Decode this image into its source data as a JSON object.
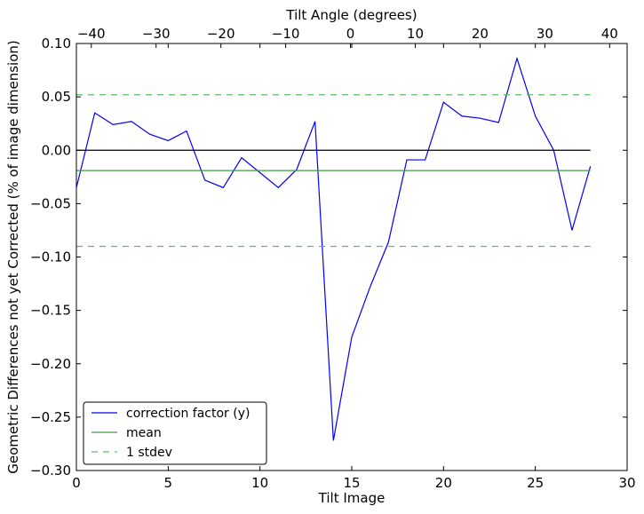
{
  "chart_data": {
    "type": "line",
    "title": "",
    "xlabel": "Tilt Image",
    "ylabel": "Geometric Differences not yet Corrected (% of image dimension)",
    "x2label": "Tilt Angle (degrees)",
    "xlim": [
      0,
      30
    ],
    "ylim": [
      -0.3,
      0.1
    ],
    "x2lim": [
      -42.3,
      42.7
    ],
    "xticks": [
      0,
      5,
      10,
      15,
      20,
      25,
      30
    ],
    "xtick_labels": [
      "0",
      "5",
      "10",
      "15",
      "20",
      "25",
      "30"
    ],
    "yticks": [
      0.1,
      0.05,
      0.0,
      -0.05,
      -0.1,
      -0.15,
      -0.2,
      -0.25,
      -0.3
    ],
    "ytick_labels": [
      "0.10",
      "0.05",
      "0.00",
      "−0.05",
      "−0.10",
      "−0.15",
      "−0.20",
      "−0.25",
      "−0.30"
    ],
    "x2ticks": [
      -40,
      -30,
      -20,
      -10,
      0,
      10,
      20,
      30,
      40
    ],
    "x2tick_labels": [
      "−40",
      "−30",
      "−20",
      "−10",
      "0",
      "10",
      "20",
      "30",
      "40"
    ],
    "grid": false,
    "legend_position": "bottom-left",
    "series": [
      {
        "name": "correction factor (y)",
        "color": "#0000ff",
        "style": "solid",
        "x": [
          0,
          1,
          2,
          3,
          4,
          5,
          6,
          7,
          8,
          9,
          10,
          11,
          12,
          13,
          14,
          15,
          16,
          17,
          18,
          19,
          20,
          21,
          22,
          23,
          24,
          25,
          26,
          27,
          28
        ],
        "values": [
          -0.035,
          0.035,
          0.024,
          0.027,
          0.015,
          0.009,
          0.018,
          -0.028,
          -0.035,
          -0.007,
          -0.021,
          -0.035,
          -0.018,
          0.027,
          -0.272,
          -0.175,
          -0.128,
          -0.086,
          -0.009,
          -0.009,
          0.045,
          0.032,
          0.03,
          0.026,
          0.086,
          0.032,
          0.0,
          -0.075,
          -0.015
        ]
      },
      {
        "name": "mean",
        "color": "#3f9f3f",
        "style": "solid",
        "x": [
          0,
          28
        ],
        "values": [
          -0.019,
          -0.019
        ]
      },
      {
        "name": "1 stdev",
        "color": "#5fbf5f",
        "style": "dashed",
        "x": [
          0,
          28
        ],
        "values": [
          0.052,
          0.052
        ]
      },
      {
        "name": "",
        "color": "#5fbf5f",
        "style": "dashed",
        "legend": false,
        "x": [
          0,
          28
        ],
        "values": [
          -0.09,
          -0.09
        ]
      },
      {
        "name": "",
        "color": "#000000",
        "style": "solid",
        "legend": false,
        "x": [
          0,
          28
        ],
        "values": [
          0.0,
          0.0
        ]
      }
    ]
  }
}
